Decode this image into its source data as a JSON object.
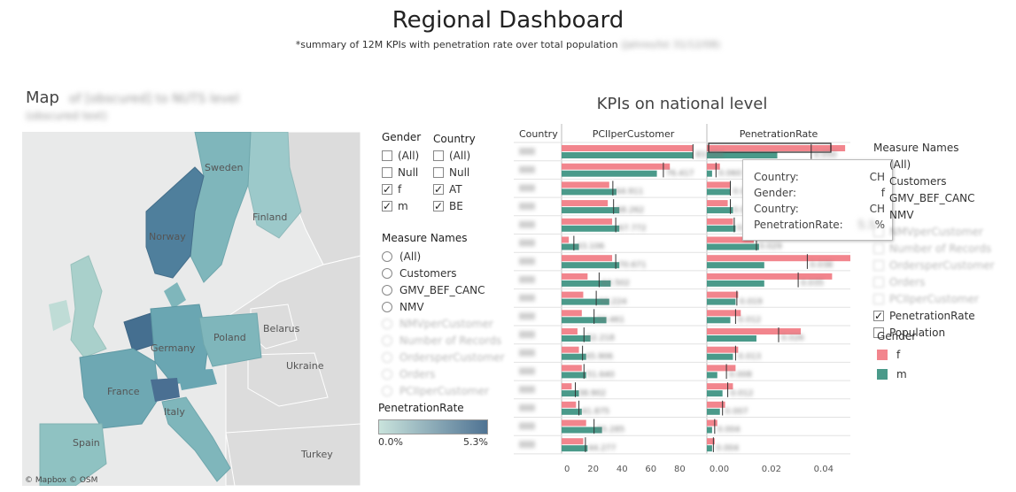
{
  "header": {
    "title": "Regional Dashboard",
    "subtitle": "*summary of 12M KPIs with penetration rate over total population",
    "subtitle_redacted": "(Jahres/Ist 31/12/08)"
  },
  "map": {
    "title": "Map",
    "title_redacted": "of [obscured] to NUTS level",
    "title_redacted2": "(obscured text)",
    "attribution": "© Mapbox  © OSM",
    "labels": {
      "sweden": "Sweden",
      "finland": "Finland",
      "norway": "Norway",
      "belarus": "Belarus",
      "poland": "Poland",
      "germany": "Germany",
      "ukraine": "Ukraine",
      "france": "France",
      "italy": "Italy",
      "spain": "Spain",
      "turkey": "Turkey"
    }
  },
  "filters": {
    "gender": {
      "title": "Gender",
      "options": [
        {
          "label": "(All)",
          "checked": false
        },
        {
          "label": "Null",
          "checked": false
        },
        {
          "label": "f",
          "checked": true
        },
        {
          "label": "m",
          "checked": true
        }
      ]
    },
    "country": {
      "title": "Country",
      "options": [
        {
          "label": "(All)",
          "checked": false
        },
        {
          "label": "Null",
          "checked": false
        },
        {
          "label": "AT",
          "checked": true
        },
        {
          "label": "BE",
          "checked": true
        }
      ]
    },
    "measure_names": {
      "title": "Measure Names",
      "options": [
        "(All)",
        "Customers",
        "GMV_BEF_CANC",
        "NMV",
        "NMVperCustomer",
        "Number of Records",
        "OrdersperCustomer",
        "Orders",
        "PCIIperCustomer"
      ]
    }
  },
  "penetration_legend": {
    "title": "PenetrationRate",
    "min": "0.0%",
    "max": "5.3%"
  },
  "kpi": {
    "title": "KPIs on national level",
    "col_country": "Country",
    "col_pci": "PCIIperCustomer",
    "col_pen": "PenetrationRate",
    "pci_ticks": [
      "0",
      "20",
      "40",
      "60",
      "80"
    ],
    "pen_ticks": [
      "0.00",
      "0.02",
      "0.04"
    ],
    "pci_labels": [
      "83.684",
      "76.417",
      "64.911",
      "68.262",
      "67.772",
      "43.106",
      "70.671",
      "63.502",
      "58.224",
      "59.461",
      "52.218",
      "45.906",
      "51.640",
      "38.902",
      "41.875",
      "55.285",
      "44.277"
    ],
    "pen_labels": [
      "0.050",
      "0.060",
      "0.021",
      "0.024",
      "0.031",
      "0.029",
      "0.038",
      "0.035",
      "0.019",
      "0.012",
      "0.026",
      "0.013",
      "0.008",
      "0.012",
      "0.007",
      "0.004",
      "0.004"
    ]
  },
  "tooltip": {
    "rows": [
      {
        "k": "Country:",
        "v": "CH"
      },
      {
        "k": "Gender:",
        "v": "f"
      },
      {
        "k": "Country:",
        "v": "CH"
      },
      {
        "k": "PenetrationRate:",
        "v": "%"
      }
    ],
    "redacted_value": "5.3"
  },
  "measure_legend": {
    "title": "Measure Names",
    "items": [
      {
        "label": "(All)",
        "checked": false,
        "faded": false
      },
      {
        "label": "Customers",
        "checked": false,
        "faded": false
      },
      {
        "label": "GMV_BEF_CANC",
        "checked": false,
        "faded": false
      },
      {
        "label": "NMV",
        "checked": false,
        "faded": false
      },
      {
        "label": "NMVperCustomer",
        "checked": false,
        "faded": true
      },
      {
        "label": "Number of Records",
        "checked": false,
        "faded": true
      },
      {
        "label": "OrdersperCustomer",
        "checked": false,
        "faded": true
      },
      {
        "label": "Orders",
        "checked": false,
        "faded": true
      },
      {
        "label": "PCIIperCustomer",
        "checked": false,
        "faded": true
      },
      {
        "label": "PenetrationRate",
        "checked": true,
        "faded": false
      },
      {
        "label": "Population",
        "checked": false,
        "faded": false
      }
    ]
  },
  "gender_legend": {
    "title": "Gender",
    "items": [
      {
        "label": "f",
        "color": "#f2858d"
      },
      {
        "label": "m",
        "color": "#4a9a8a"
      }
    ]
  },
  "colors": {
    "female": "#f2858d",
    "male": "#4a9a8a"
  },
  "chart_data": {
    "type": "bar",
    "categories": [
      "",
      "",
      "",
      "",
      "",
      "",
      "",
      "",
      "",
      "",
      "",
      "",
      "",
      "",
      "",
      "",
      ""
    ],
    "panels": [
      {
        "measure": "PCIIperCustomer",
        "xlim": [
          0,
          100
        ],
        "series": [
          {
            "name": "f",
            "values": [
              91,
              75,
              33,
              32,
              35,
              5,
              35,
              18,
              15,
              14,
              11,
              12,
              14,
              7,
              10,
              17,
              15
            ]
          },
          {
            "name": "m",
            "values": [
              91,
              66,
              38,
              40,
              40,
              12,
              40,
              34,
              33,
              31,
              20,
              17,
              17,
              12,
              14,
              28,
              18
            ]
          }
        ]
      },
      {
        "measure": "PenetrationRate",
        "xlim": [
          0,
          0.055
        ],
        "series": [
          {
            "name": "f",
            "values": [
              0.053,
              0.005,
              0.009,
              0.008,
              0.01,
              0.018,
              0.055,
              0.048,
              0.012,
              0.013,
              0.036,
              0.012,
              0.011,
              0.01,
              0.007,
              0.004,
              0.003
            ]
          },
          {
            "name": "m",
            "values": [
              0.027,
              0.002,
              0.009,
              0.01,
              0.011,
              0.02,
              0.022,
              0.022,
              0.011,
              0.009,
              0.019,
              0.01,
              0.004,
              0.006,
              0.005,
              0.002,
              0.002
            ]
          }
        ]
      }
    ]
  }
}
